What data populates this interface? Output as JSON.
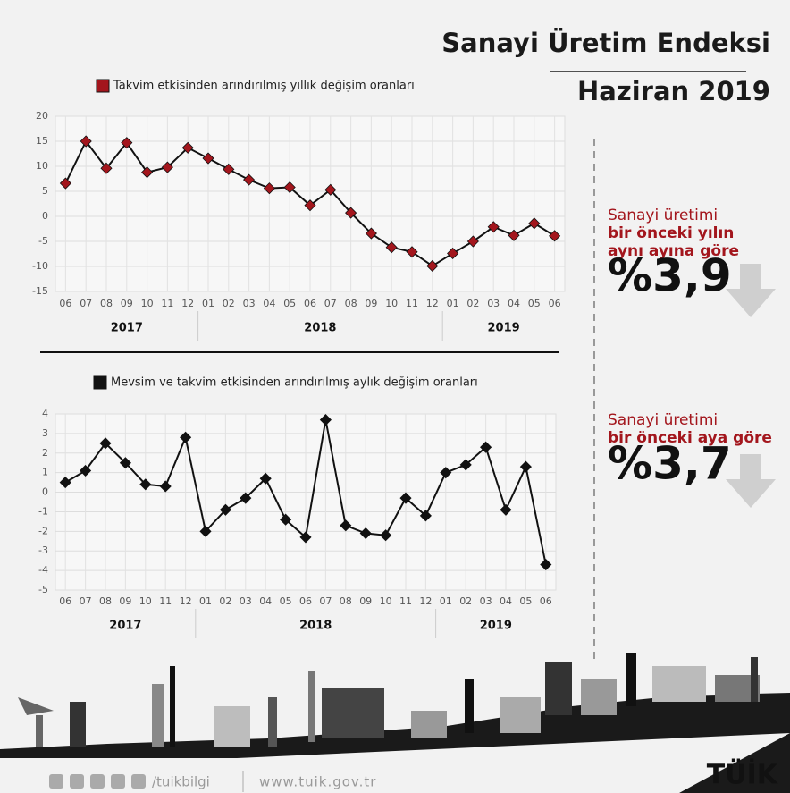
{
  "header": {
    "title": "Sanayi Üretim Endeksi",
    "subtitle": "Haziran 2019"
  },
  "chart_data": [
    {
      "type": "line",
      "legend": "Takvim etkisinden arındırılmış yıllık değişim oranları",
      "categories": [
        "06",
        "07",
        "08",
        "09",
        "10",
        "11",
        "12",
        "01",
        "02",
        "03",
        "04",
        "05",
        "06",
        "07",
        "08",
        "09",
        "10",
        "11",
        "12",
        "01",
        "02",
        "03",
        "04",
        "05",
        "06"
      ],
      "category_groups": [
        "2017",
        "2018",
        "2019"
      ],
      "series": [
        {
          "name": "Takvim etkisinden arındırılmış yıllık değişim oranları",
          "color": "#a3161d",
          "values": [
            6.6,
            15.0,
            9.6,
            14.7,
            8.8,
            9.8,
            13.7,
            11.6,
            9.4,
            7.3,
            5.6,
            5.8,
            2.2,
            5.3,
            0.7,
            -3.4,
            -6.2,
            -7.1,
            -9.9,
            -7.4,
            -5.0,
            -2.1,
            -3.8,
            -1.4,
            -3.9
          ]
        }
      ],
      "ylim": [
        -15,
        20
      ],
      "yticks": [
        -15,
        -10,
        -5,
        0,
        5,
        10,
        15,
        20
      ],
      "grid": true
    },
    {
      "type": "line",
      "legend": "Mevsim ve takvim etkisinden arındırılmış aylık değişim oranları",
      "categories": [
        "06",
        "07",
        "08",
        "09",
        "10",
        "11",
        "12",
        "01",
        "02",
        "03",
        "04",
        "05",
        "06",
        "07",
        "08",
        "09",
        "10",
        "11",
        "12",
        "01",
        "02",
        "03",
        "04",
        "05",
        "06"
      ],
      "category_groups": [
        "2017",
        "2018",
        "2019"
      ],
      "series": [
        {
          "name": "Mevsim ve takvim etkisinden arındırılmış aylık değişim oranları",
          "color": "#111111",
          "values": [
            0.5,
            1.1,
            2.5,
            1.5,
            0.4,
            0.3,
            2.8,
            -2.0,
            -0.9,
            -0.3,
            0.7,
            -1.4,
            -2.3,
            3.7,
            -1.7,
            -2.1,
            -2.2,
            -0.3,
            -1.2,
            1.0,
            1.4,
            2.3,
            -0.9,
            1.3,
            -3.7
          ]
        }
      ],
      "ylim": [
        -5,
        4
      ],
      "yticks": [
        -5,
        -4,
        -3,
        -2,
        -1,
        0,
        1,
        2,
        3,
        4
      ],
      "grid": true
    }
  ],
  "panels": [
    {
      "lines": [
        "Sanayi üretimi",
        "bir önceki yılın",
        "aynı ayına göre"
      ],
      "figure": "%3,9"
    },
    {
      "lines": [
        "Sanayi üretimi",
        "bir önceki aya göre"
      ],
      "figure": "%3,7"
    }
  ],
  "footer": {
    "handle": "/tuikbilgi",
    "url": "www.tuik.gov.tr",
    "logo": "TÜİK"
  }
}
